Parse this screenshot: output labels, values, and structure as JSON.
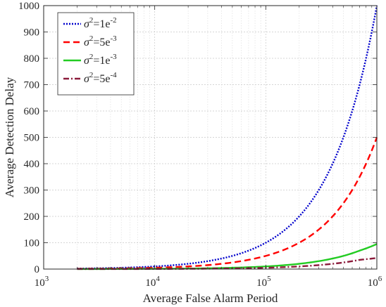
{
  "chart_data": {
    "type": "line",
    "title": "",
    "xlabel": "Average False Alarm Period",
    "ylabel": "Average Detection Delay",
    "xscale": "log",
    "xlim": [
      1000,
      1000000
    ],
    "ylim": [
      0,
      1000
    ],
    "grid": true,
    "legend_position": "top-left",
    "x_ticks": [
      {
        "value": 1000,
        "base": "10",
        "exp": "3"
      },
      {
        "value": 10000,
        "base": "10",
        "exp": "4"
      },
      {
        "value": 100000,
        "base": "10",
        "exp": "5"
      },
      {
        "value": 1000000,
        "base": "10",
        "exp": "6"
      }
    ],
    "y_ticks": [
      0,
      100,
      200,
      300,
      400,
      500,
      600,
      700,
      800,
      900,
      1000
    ],
    "y_tick_labels": [
      "0",
      "100",
      "200",
      "300",
      "400",
      "500",
      "600",
      "700",
      "800",
      "900",
      "1000"
    ],
    "series": [
      {
        "name_base": "σ",
        "name_sup": "2",
        "name_mid": "=1e",
        "name_exp": "-2",
        "color": "#0000cc",
        "dash": "2,2",
        "x": [
          2000,
          3000,
          5000,
          10000,
          20000,
          30000,
          50000,
          100000,
          200000,
          300000,
          500000,
          700000,
          1000000
        ],
        "y": [
          2,
          3,
          5,
          10,
          20,
          30,
          50,
          100,
          200,
          300,
          500,
          700,
          1000
        ]
      },
      {
        "name_base": "σ",
        "name_sup": "2",
        "name_mid": "=5e",
        "name_exp": "-3",
        "color": "#ff0000",
        "dash": "9,5",
        "x": [
          2000,
          3000,
          5000,
          10000,
          20000,
          30000,
          50000,
          100000,
          200000,
          300000,
          500000,
          700000,
          1000000
        ],
        "y": [
          1,
          1.5,
          2.5,
          5,
          10,
          15,
          25,
          50,
          100,
          150,
          250,
          350,
          500
        ]
      },
      {
        "name_base": "σ",
        "name_sup": "2",
        "name_mid": "=1e",
        "name_exp": "-3",
        "color": "#22cc22",
        "dash": "",
        "x": [
          2000,
          3000,
          5000,
          10000,
          20000,
          30000,
          50000,
          100000,
          200000,
          300000,
          500000,
          700000,
          1000000
        ],
        "y": [
          0.2,
          0.3,
          0.5,
          1,
          2,
          3,
          5,
          10,
          20,
          30,
          50,
          70,
          95
        ]
      },
      {
        "name_base": "σ",
        "name_sup": "2",
        "name_mid": "=5e",
        "name_exp": "-4",
        "color": "#8b1a3a",
        "dash": "8,3,2,3",
        "x": [
          2000,
          3000,
          5000,
          10000,
          20000,
          30000,
          50000,
          100000,
          200000,
          300000,
          500000,
          700000,
          1000000
        ],
        "y": [
          0.1,
          0.15,
          0.25,
          0.5,
          1,
          1.5,
          2.5,
          5,
          10,
          15,
          25,
          35,
          42
        ]
      }
    ]
  }
}
